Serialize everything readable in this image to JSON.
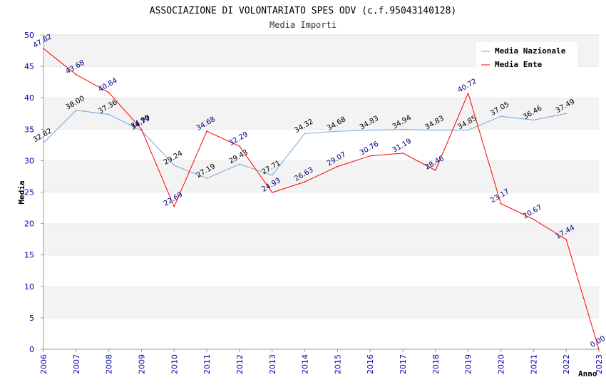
{
  "chart_data": {
    "type": "line",
    "title": "ASSOCIAZIONE DI VOLONTARIATO SPES ODV (c.f.95043140128)",
    "subtitle": "Media Importi",
    "xlabel": "Anno",
    "ylabel": "Media",
    "ylim": [
      0,
      50
    ],
    "yticks": [
      "0",
      "5",
      "10",
      "15",
      "20",
      "25",
      "30",
      "35",
      "40",
      "45",
      "50"
    ],
    "categories": [
      "2006",
      "2007",
      "2008",
      "2009",
      "2010",
      "2011",
      "2012",
      "2013",
      "2014",
      "2015",
      "2016",
      "2017",
      "2018",
      "2019",
      "2020",
      "2021",
      "2022",
      "2023"
    ],
    "legend_position": "top-right",
    "series": [
      {
        "name": "Media Nazionale",
        "color": "#6fa8dc",
        "values": [
          32.82,
          38.0,
          37.36,
          34.79,
          29.24,
          27.19,
          29.43,
          27.71,
          34.32,
          34.68,
          34.83,
          34.94,
          34.83,
          34.85,
          37.05,
          36.46,
          37.49,
          null
        ],
        "labels": [
          "32.82",
          "38.00",
          "37.36",
          "34.79",
          "29.24",
          "27.19",
          "29.43",
          "27.71",
          "34.32",
          "34.68",
          "34.83",
          "34.94",
          "34.83",
          "34.85",
          "37.05",
          "36.46",
          "37.49",
          null
        ]
      },
      {
        "name": "Media Ente",
        "color": "#ff0000",
        "values": [
          47.82,
          43.68,
          40.84,
          34.99,
          22.69,
          34.68,
          32.29,
          24.93,
          26.63,
          29.07,
          30.76,
          31.19,
          28.46,
          40.72,
          23.17,
          20.67,
          17.44,
          0.0
        ],
        "labels": [
          "47.82",
          "43.68",
          "40.84",
          "34.99",
          "22.69",
          "34.68",
          "32.29",
          "24.93",
          "26.63",
          "29.07",
          "30.76",
          "31.19",
          "28.46",
          "40.72",
          "23.17",
          "20.67",
          "17.44",
          "0.00"
        ]
      }
    ]
  }
}
